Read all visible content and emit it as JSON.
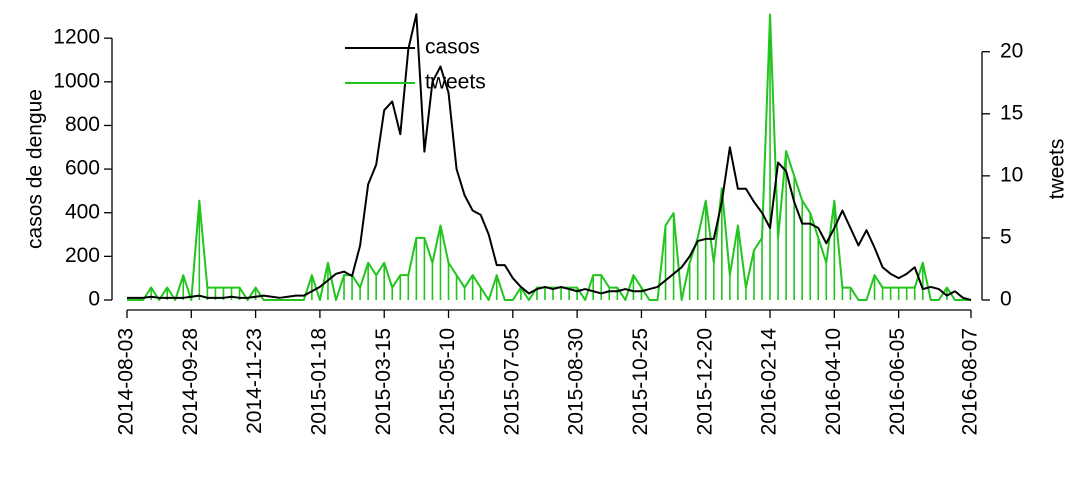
{
  "chart_data": {
    "type": "line",
    "x": [
      "2014-08-03",
      "2014-08-10",
      "2014-08-17",
      "2014-08-24",
      "2014-08-31",
      "2014-09-07",
      "2014-09-14",
      "2014-09-21",
      "2014-09-28",
      "2014-10-05",
      "2014-10-12",
      "2014-10-19",
      "2014-10-26",
      "2014-11-02",
      "2014-11-09",
      "2014-11-16",
      "2014-11-23",
      "2014-11-30",
      "2014-12-07",
      "2014-12-14",
      "2014-12-21",
      "2014-12-28",
      "2015-01-04",
      "2015-01-11",
      "2015-01-18",
      "2015-01-25",
      "2015-02-01",
      "2015-02-08",
      "2015-02-15",
      "2015-02-22",
      "2015-03-01",
      "2015-03-08",
      "2015-03-15",
      "2015-03-22",
      "2015-03-29",
      "2015-04-05",
      "2015-04-12",
      "2015-04-19",
      "2015-04-26",
      "2015-05-03",
      "2015-05-10",
      "2015-05-17",
      "2015-05-24",
      "2015-05-31",
      "2015-06-07",
      "2015-06-14",
      "2015-06-21",
      "2015-06-28",
      "2015-07-05",
      "2015-07-12",
      "2015-07-19",
      "2015-07-26",
      "2015-08-02",
      "2015-08-09",
      "2015-08-16",
      "2015-08-23",
      "2015-08-30",
      "2015-09-06",
      "2015-09-13",
      "2015-09-20",
      "2015-09-27",
      "2015-10-04",
      "2015-10-11",
      "2015-10-18",
      "2015-10-25",
      "2015-11-01",
      "2015-11-08",
      "2015-11-15",
      "2015-11-22",
      "2015-11-29",
      "2015-12-06",
      "2015-12-13",
      "2015-12-20",
      "2015-12-27",
      "2016-01-03",
      "2016-01-10",
      "2016-01-17",
      "2016-01-24",
      "2016-01-31",
      "2016-02-07",
      "2016-02-14",
      "2016-02-21",
      "2016-02-28",
      "2016-03-06",
      "2016-03-13",
      "2016-03-20",
      "2016-03-27",
      "2016-04-03",
      "2016-04-10",
      "2016-04-17",
      "2016-04-24",
      "2016-05-01",
      "2016-05-08",
      "2016-05-15",
      "2016-05-22",
      "2016-05-29",
      "2016-06-05",
      "2016-06-12",
      "2016-06-19",
      "2016-06-26",
      "2016-07-03",
      "2016-07-10",
      "2016-07-17",
      "2016-07-24",
      "2016-07-31",
      "2016-08-07"
    ],
    "xlim": [
      "2014-08-03",
      "2016-08-07"
    ],
    "xticks": [
      "2014-08-03",
      "2014-09-28",
      "2014-11-23",
      "2015-01-18",
      "2015-03-15",
      "2015-05-10",
      "2015-07-05",
      "2015-08-30",
      "2015-10-25",
      "2015-12-20",
      "2016-02-14",
      "2016-04-10",
      "2016-06-05",
      "2016-08-07"
    ],
    "ylabel": "casos de dengue",
    "y2label": "tweets",
    "ylim": [
      0,
      1320
    ],
    "yticks": [
      0,
      200,
      400,
      600,
      800,
      1000,
      1200
    ],
    "y2lim": [
      0,
      23.2
    ],
    "y2ticks": [
      0,
      5,
      10,
      15,
      20
    ],
    "legend": "top",
    "series": [
      {
        "name": "casos",
        "color": "#000000",
        "values": [
          10,
          10,
          10,
          15,
          10,
          10,
          10,
          10,
          15,
          20,
          10,
          10,
          10,
          15,
          10,
          10,
          15,
          20,
          15,
          10,
          15,
          20,
          20,
          40,
          60,
          90,
          120,
          130,
          110,
          250,
          530,
          620,
          870,
          910,
          760,
          1150,
          1310,
          680,
          1000,
          1070,
          950,
          600,
          480,
          410,
          390,
          300,
          160,
          160,
          100,
          60,
          30,
          50,
          60,
          50,
          60,
          50,
          40,
          50,
          40,
          30,
          40,
          40,
          50,
          40,
          40,
          50,
          60,
          90,
          120,
          150,
          200,
          270,
          280,
          280,
          450,
          700,
          510,
          510,
          450,
          400,
          330,
          630,
          590,
          450,
          350,
          350,
          330,
          260,
          330,
          410,
          330,
          250,
          320,
          240,
          150,
          120,
          100,
          120,
          150,
          50,
          60,
          50,
          20,
          40,
          10,
          0
        ]
      },
      {
        "name": "tweets",
        "color": "#22c41e",
        "axis": "y2",
        "values": [
          0,
          0,
          0,
          1,
          0,
          1,
          0,
          2,
          0,
          8,
          1,
          1,
          1,
          1,
          1,
          0,
          1,
          0,
          0,
          0,
          0,
          0,
          0,
          2,
          0,
          3,
          0,
          2,
          2,
          1,
          3,
          2,
          3,
          1,
          2,
          2,
          5,
          5,
          3,
          6,
          3,
          2,
          1,
          2,
          1,
          0,
          2,
          0,
          0,
          1,
          0,
          1,
          1,
          1,
          1,
          1,
          1,
          0,
          2,
          2,
          1,
          1,
          0,
          2,
          1,
          0,
          0,
          6,
          7,
          0,
          3,
          5,
          8,
          3,
          9,
          2,
          6,
          1,
          4,
          5,
          23,
          5,
          12,
          10,
          8,
          7,
          5,
          3,
          8,
          1,
          1,
          0,
          0,
          2,
          1,
          1,
          1,
          1,
          1,
          3,
          0,
          0,
          1,
          0,
          0,
          0
        ]
      }
    ]
  }
}
